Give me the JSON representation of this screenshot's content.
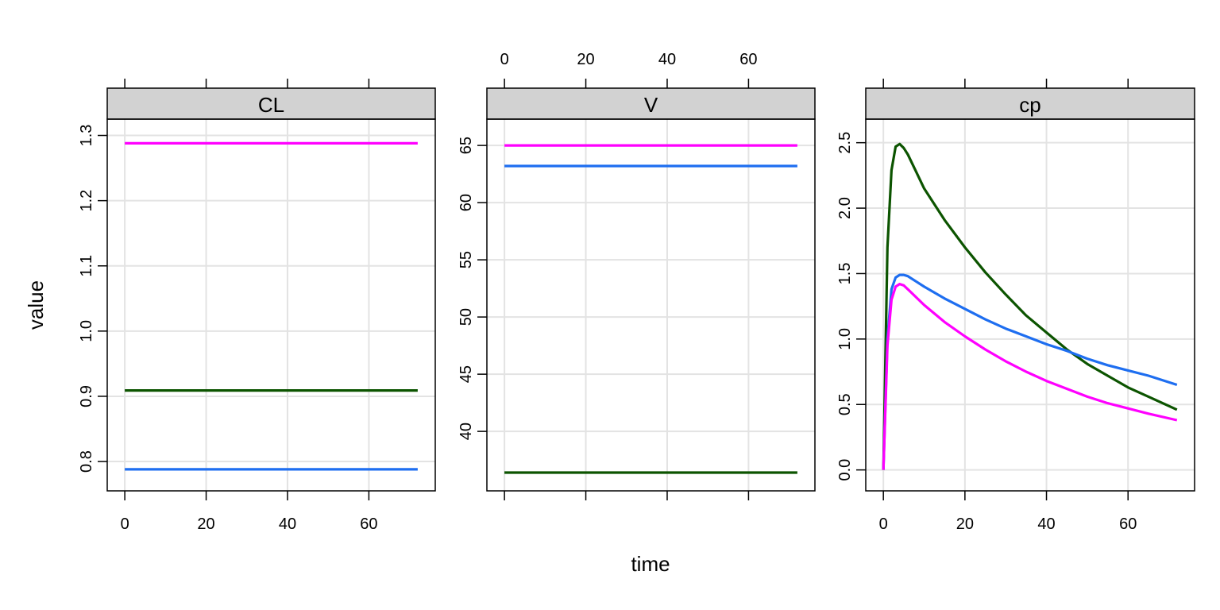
{
  "chart_data": {
    "type": "line",
    "layout": "lattice-panels",
    "xlabel": "time",
    "ylabel": "value",
    "xlim": [
      0,
      72
    ],
    "x_ticks": [
      0,
      20,
      40,
      60
    ],
    "grid": true,
    "colors": {
      "magenta": "#ff00ff",
      "blue": "#1e6ef0",
      "green": "#0c5400",
      "strip": "#d2d2d2",
      "grid": "#e3e3e3"
    },
    "panels": [
      {
        "strip": "CL",
        "ylim": [
          0.755,
          1.325
        ],
        "y_ticks": [
          "0.8",
          "0.9",
          "1.0",
          "1.1",
          "1.2",
          "1.3"
        ],
        "x_tick_labels_position": "bottom",
        "series": [
          {
            "color": "magenta",
            "x": [
              0,
              72
            ],
            "y": [
              1.288,
              1.288
            ]
          },
          {
            "color": "green",
            "x": [
              0,
              72
            ],
            "y": [
              0.909,
              0.909
            ]
          },
          {
            "color": "blue",
            "x": [
              0,
              72
            ],
            "y": [
              0.788,
              0.788
            ]
          }
        ]
      },
      {
        "strip": "V",
        "ylim": [
          34.8,
          67.3
        ],
        "y_ticks": [
          "40",
          "45",
          "50",
          "55",
          "60",
          "65"
        ],
        "x_tick_labels_position": "top",
        "series": [
          {
            "color": "magenta",
            "x": [
              0,
              72
            ],
            "y": [
              65.0,
              65.0
            ]
          },
          {
            "color": "blue",
            "x": [
              0,
              72
            ],
            "y": [
              63.2,
              63.2
            ]
          },
          {
            "color": "green",
            "x": [
              0,
              72
            ],
            "y": [
              36.4,
              36.4
            ]
          }
        ]
      },
      {
        "strip": "cp",
        "ylim": [
          -0.16,
          2.68
        ],
        "y_ticks": [
          "0.0",
          "0.5",
          "1.0",
          "1.5",
          "2.0",
          "2.5"
        ],
        "x_tick_labels_position": "bottom",
        "series": [
          {
            "color": "green",
            "x": [
              0,
              1,
              2,
              3,
              4,
              5,
              6,
              8,
              10,
              15,
              20,
              25,
              30,
              35,
              40,
              45,
              50,
              55,
              60,
              65,
              72
            ],
            "y": [
              0,
              1.7,
              2.29,
              2.47,
              2.49,
              2.46,
              2.41,
              2.28,
              2.15,
              1.91,
              1.7,
              1.51,
              1.34,
              1.18,
              1.05,
              0.92,
              0.81,
              0.72,
              0.63,
              0.56,
              0.46
            ]
          },
          {
            "color": "blue",
            "x": [
              0,
              1,
              2,
              3,
              4,
              5,
              6,
              8,
              10,
              15,
              20,
              25,
              30,
              35,
              40,
              45,
              50,
              55,
              60,
              65,
              72
            ],
            "y": [
              0,
              1.0,
              1.38,
              1.47,
              1.49,
              1.49,
              1.48,
              1.44,
              1.4,
              1.31,
              1.23,
              1.15,
              1.08,
              1.02,
              0.96,
              0.91,
              0.85,
              0.8,
              0.76,
              0.72,
              0.65
            ]
          },
          {
            "color": "magenta",
            "x": [
              0,
              1,
              2,
              3,
              4,
              5,
              6,
              8,
              10,
              15,
              20,
              25,
              30,
              35,
              40,
              45,
              50,
              55,
              60,
              65,
              72
            ],
            "y": [
              0,
              0.95,
              1.3,
              1.4,
              1.42,
              1.41,
              1.38,
              1.32,
              1.26,
              1.13,
              1.02,
              0.92,
              0.83,
              0.75,
              0.68,
              0.62,
              0.56,
              0.51,
              0.47,
              0.43,
              0.38
            ]
          }
        ]
      }
    ]
  }
}
